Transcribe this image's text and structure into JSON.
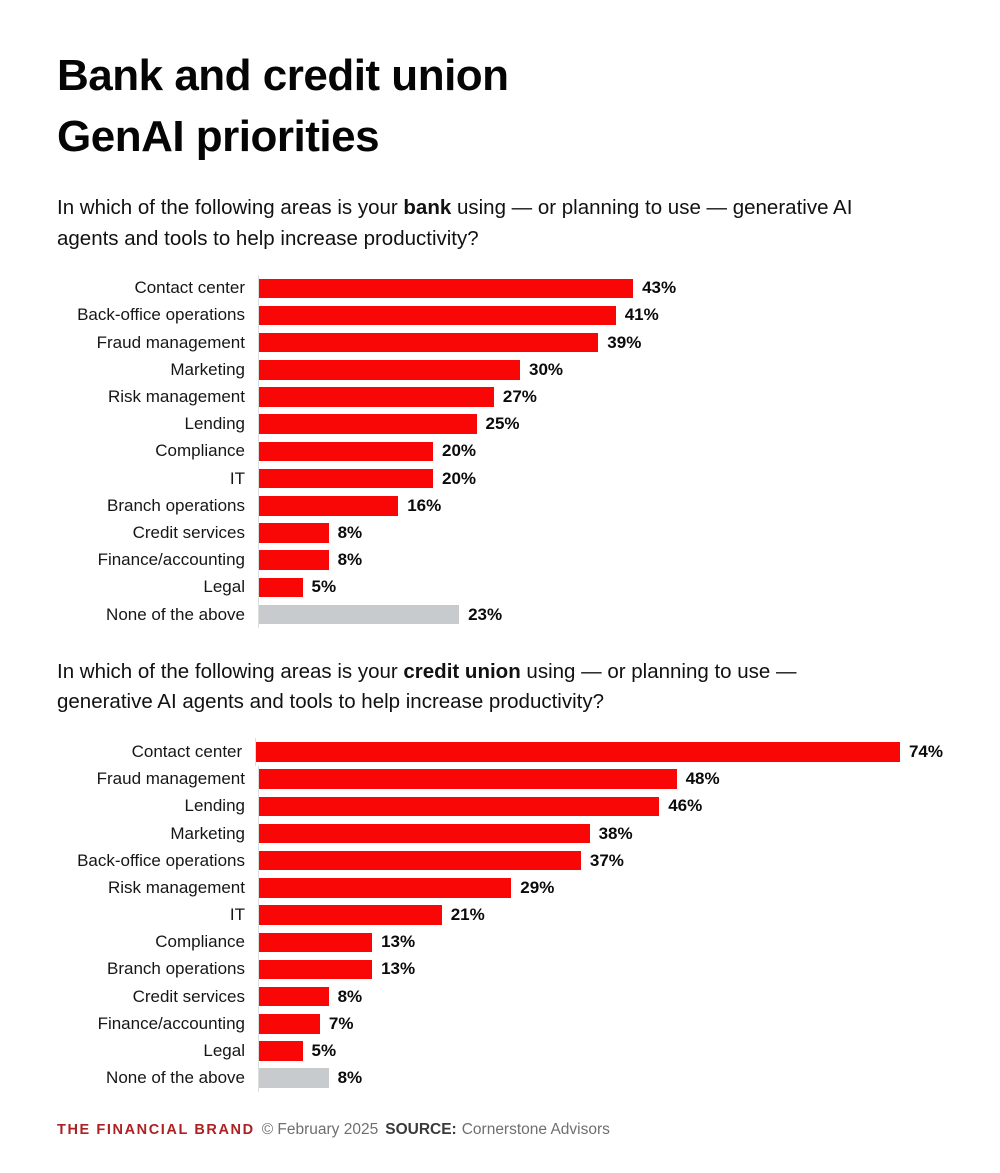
{
  "title": {
    "line1": "Bank and credit union",
    "line2": "GenAI priorities"
  },
  "colors": {
    "bar_red": "#f90606",
    "bar_gray": "#c7cbce",
    "brand_red": "#ad2024",
    "axis_line": "#dadedf"
  },
  "chart_data": [
    {
      "type": "bar",
      "orientation": "horizontal",
      "title": "Bank GenAI priorities",
      "question_parts": {
        "pre": "In which of the following areas is your ",
        "bold": "bank",
        "post": " using — or planning to use — generative AI agents and tools to help increase productivity?"
      },
      "categories": [
        "Contact center",
        "Back-office operations",
        "Fraud management",
        "Marketing",
        "Risk management",
        "Lending",
        "Compliance",
        "IT",
        "Branch operations",
        "Credit services",
        "Finance/accounting",
        "Legal",
        "None of the above"
      ],
      "values": [
        43,
        41,
        39,
        30,
        27,
        25,
        20,
        20,
        16,
        8,
        8,
        5,
        23
      ],
      "value_suffix": "%",
      "value_labels": true,
      "grid": false,
      "legend": false,
      "xlim": [
        0,
        80
      ],
      "bar_color": "#f90606",
      "muted_category": "None of the above",
      "muted_color": "#c7cbce"
    },
    {
      "type": "bar",
      "orientation": "horizontal",
      "title": "Credit union GenAI priorities",
      "question_parts": {
        "pre": "In which of the following areas is your ",
        "bold": "credit union",
        "post": " using — or planning to use — generative AI agents and tools to help increase productivity?"
      },
      "categories": [
        "Contact center",
        "Fraud management",
        "Lending",
        "Marketing",
        "Back-office operations",
        "Risk management",
        "IT",
        "Compliance",
        "Branch operations",
        "Credit services",
        "Finance/accounting",
        "Legal",
        "None of the above"
      ],
      "values": [
        74,
        48,
        46,
        38,
        37,
        29,
        21,
        13,
        13,
        8,
        7,
        5,
        8
      ],
      "value_suffix": "%",
      "value_labels": true,
      "grid": false,
      "legend": false,
      "xlim": [
        0,
        80
      ],
      "bar_color": "#f90606",
      "muted_category": "None of the above",
      "muted_color": "#c7cbce"
    }
  ],
  "footer": {
    "brand": "THE FINANCIAL BRAND",
    "copyright": "© February 2025",
    "source_label": "SOURCE:",
    "source": "Cornerstone Advisors"
  }
}
